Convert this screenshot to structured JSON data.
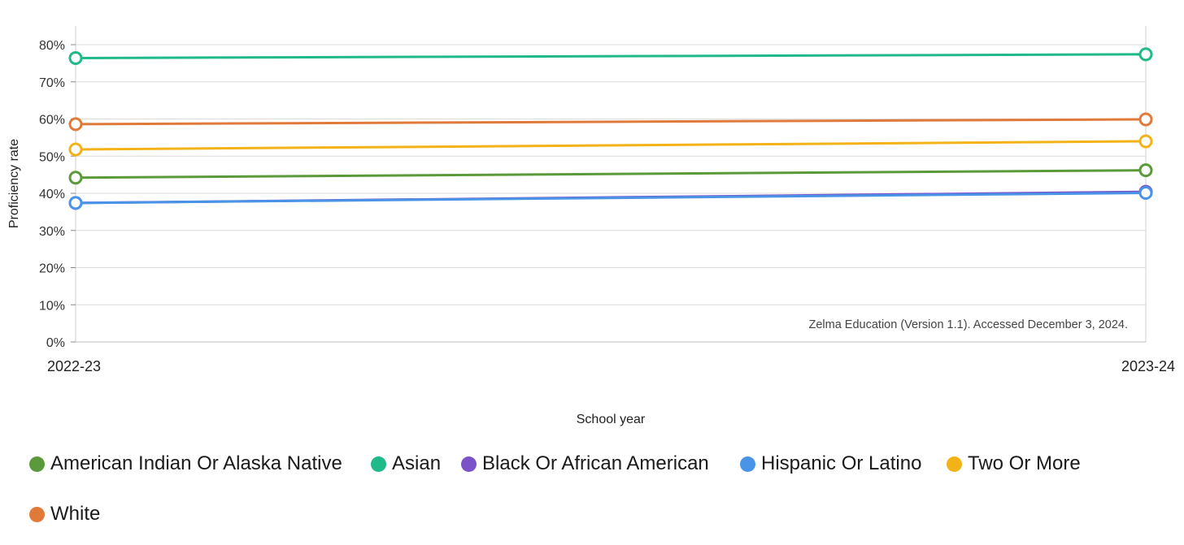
{
  "chart_data": {
    "type": "line",
    "x": [
      "2022-23",
      "2023-24"
    ],
    "xlabel": "School year",
    "ylabel": "Proficiency rate",
    "ylim": [
      0,
      80
    ],
    "yticks": [
      "0%",
      "10%",
      "20%",
      "30%",
      "40%",
      "50%",
      "60%",
      "70%",
      "80%"
    ],
    "grid": true,
    "legend_position": "bottom",
    "series": [
      {
        "name": "American Indian Or Alaska Native",
        "color": "#5b9a3a",
        "values": [
          44.2,
          46.2
        ]
      },
      {
        "name": "Asian",
        "color": "#1fb98a",
        "values": [
          76.4,
          77.4
        ]
      },
      {
        "name": "Black Or African American",
        "color": "#7b52c8",
        "values": [
          37.4,
          40.4
        ]
      },
      {
        "name": "Hispanic Or Latino",
        "color": "#4a94e8",
        "values": [
          37.4,
          40.1
        ]
      },
      {
        "name": "Two Or More",
        "color": "#f3b318",
        "values": [
          51.8,
          54.0
        ]
      },
      {
        "name": "White",
        "color": "#e07a3a",
        "values": [
          58.6,
          59.9
        ]
      }
    ],
    "annotation": "Zelma Education (Version 1.1). Accessed December 3, 2024."
  }
}
